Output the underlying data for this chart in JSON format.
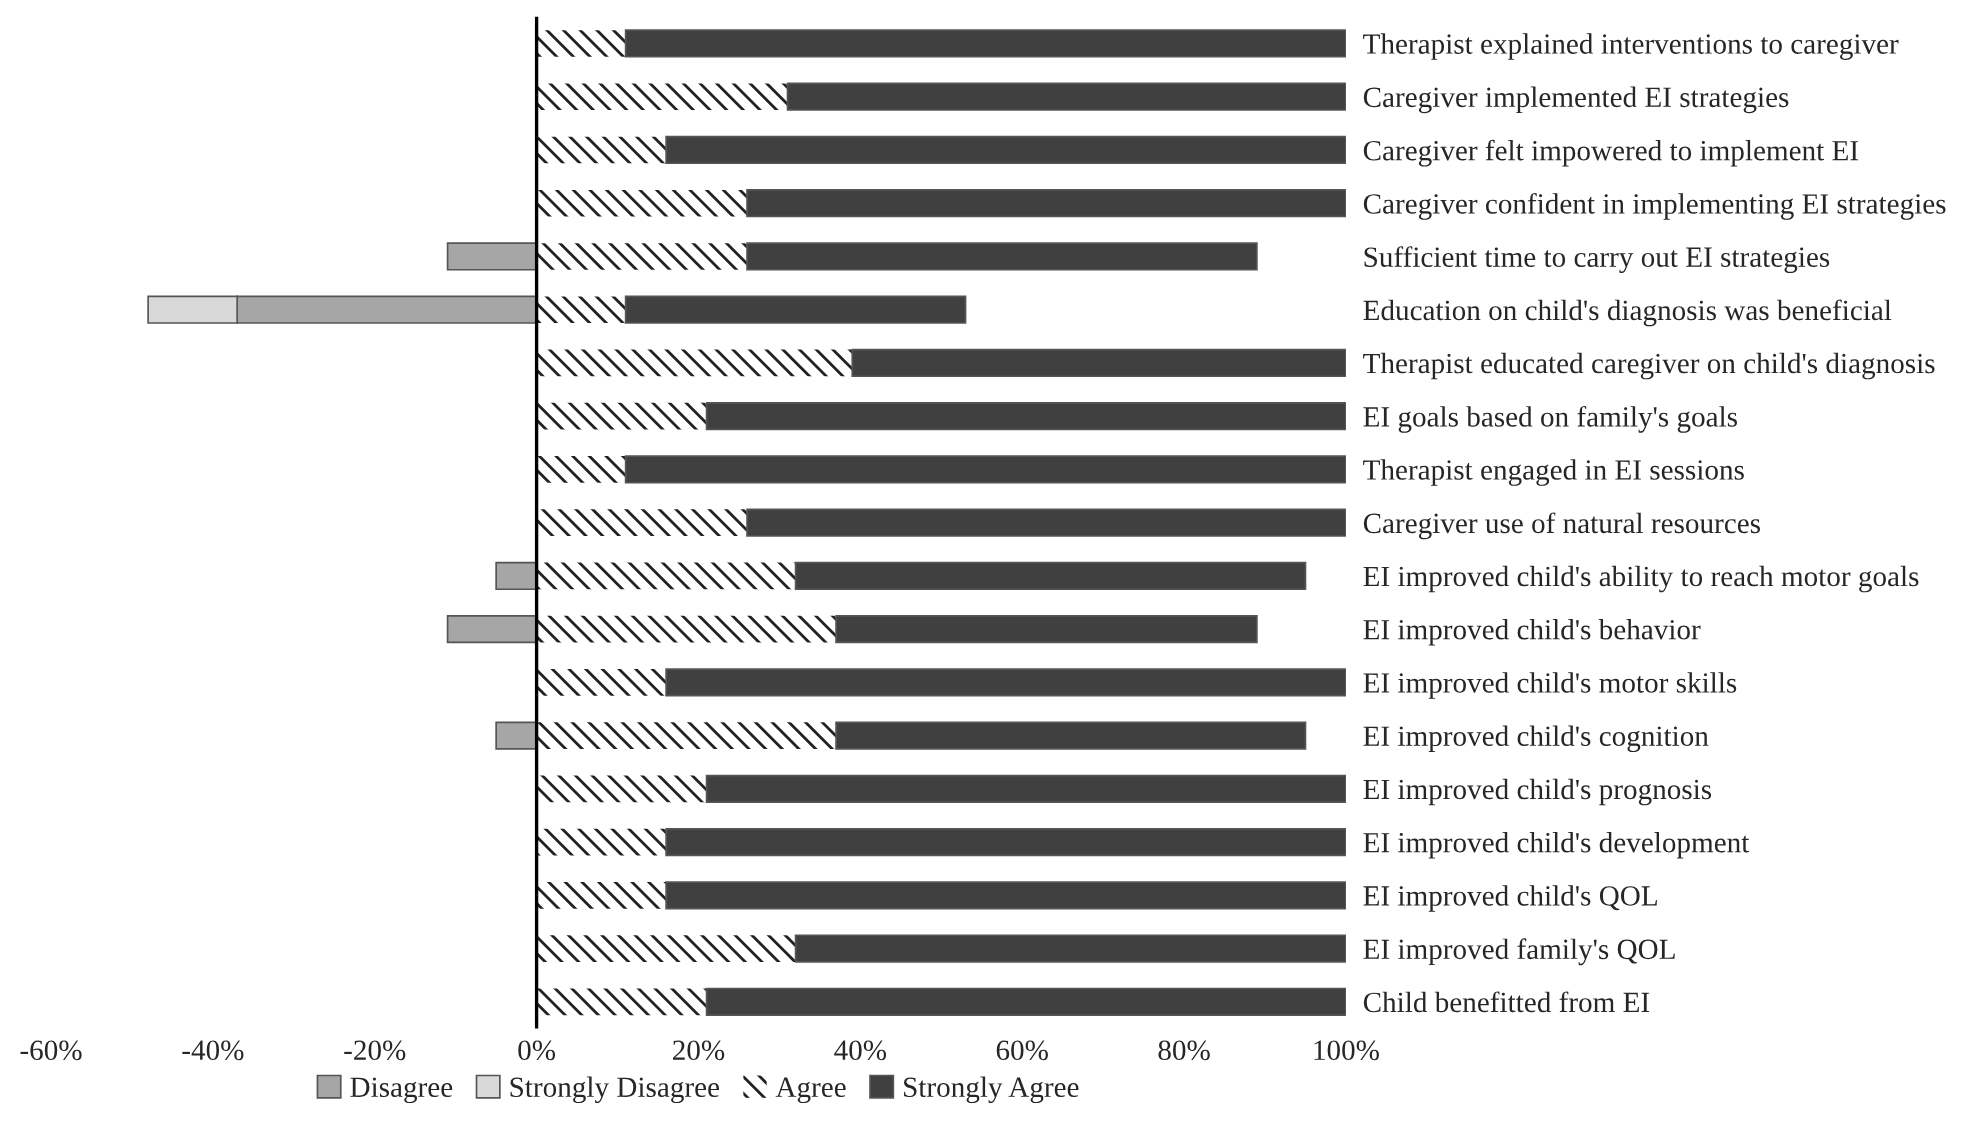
{
  "chart_data": {
    "type": "bar",
    "orientation": "horizontal",
    "stacked": true,
    "categories": [
      "Therapist explained interventions to caregiver",
      "Caregiver implemented EI strategies",
      "Caregiver felt impowered to implement EI",
      "Caregiver confident in implementing EI strategies",
      "Sufficient time to carry out EI strategies",
      "Education on child's diagnosis was beneficial",
      "Therapist educated caregiver on child's diagnosis",
      "EI goals based on family's goals",
      "Therapist engaged in EI sessions",
      "Caregiver use of natural resources",
      "EI improved child's ability to reach motor goals",
      "EI improved child's behavior",
      "EI improved child's motor skills",
      "EI improved child's cognition",
      "EI improved child's prognosis",
      "EI improved child's development",
      "EI improved child's QOL",
      "EI improved family's QOL",
      "Child benefitted from EI"
    ],
    "series": [
      {
        "name": "Disagree",
        "color": "#a6a6a6",
        "values": [
          0,
          0,
          0,
          0,
          -11,
          -37,
          0,
          0,
          0,
          0,
          -5,
          -11,
          0,
          -5,
          0,
          0,
          0,
          0,
          0
        ]
      },
      {
        "name": "Strongly Disagree",
        "color": "#d9d9d9",
        "values": [
          0,
          0,
          0,
          0,
          0,
          -11,
          0,
          0,
          0,
          0,
          0,
          0,
          0,
          0,
          0,
          0,
          0,
          0,
          0
        ]
      },
      {
        "name": "Agree",
        "color": "#ffffff",
        "values": [
          11,
          31,
          16,
          26,
          26,
          11,
          39,
          21,
          11,
          26,
          32,
          37,
          16,
          37,
          21,
          16,
          16,
          32,
          21
        ]
      },
      {
        "name": "Strongly Agree",
        "color": "#404040",
        "values": [
          89,
          69,
          84,
          74,
          63,
          42,
          61,
          79,
          89,
          74,
          63,
          52,
          84,
          58,
          79,
          84,
          84,
          68,
          79
        ]
      }
    ],
    "xlim": [
      -60,
      100
    ],
    "xticks": [
      {
        "value": -60,
        "label": "-60%"
      },
      {
        "value": -40,
        "label": "-40%"
      },
      {
        "value": -20,
        "label": "-20%"
      },
      {
        "value": 0,
        "label": "0%"
      },
      {
        "value": 20,
        "label": "20%"
      },
      {
        "value": 40,
        "label": "40%"
      },
      {
        "value": 60,
        "label": "60%"
      },
      {
        "value": 80,
        "label": "80%"
      },
      {
        "value": 100,
        "label": "100%"
      }
    ],
    "ref_lines": [
      {
        "axis": "x",
        "value": 0,
        "color": "#000000"
      }
    ],
    "legend": "bottom",
    "grid": false
  }
}
